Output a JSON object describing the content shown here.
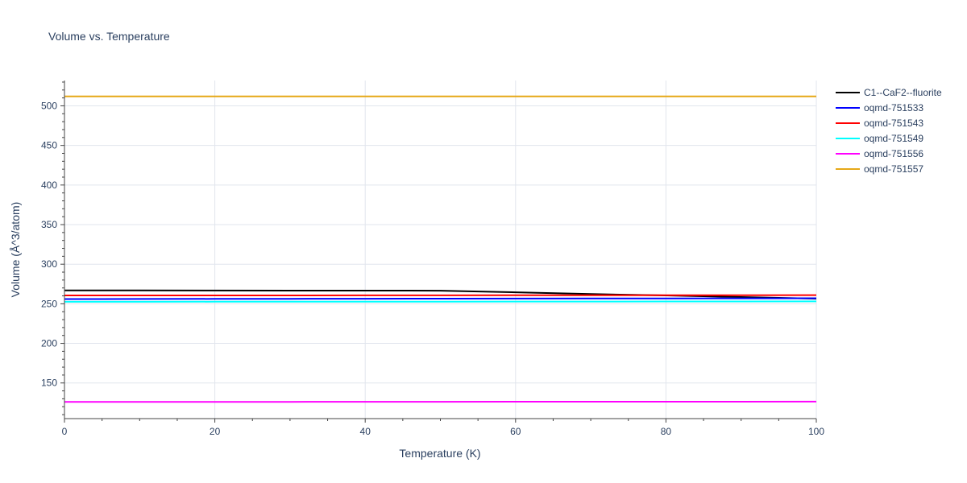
{
  "chart_data": {
    "type": "line",
    "title": "Volume vs. Temperature",
    "xlabel": "Temperature (K)",
    "ylabel": "Volume (Å^3/atom)",
    "xlim": [
      0,
      100
    ],
    "ylim": [
      105,
      532
    ],
    "xticks": [
      0,
      20,
      40,
      60,
      80,
      100
    ],
    "yticks": [
      150,
      200,
      250,
      300,
      350,
      400,
      450,
      500
    ],
    "grid": true,
    "legend_position": "top-right",
    "series": [
      {
        "name": "C1--CaF2--fluorite",
        "color": "#000000",
        "x": [
          0,
          10,
          20,
          30,
          40,
          50,
          60,
          70,
          80,
          90,
          100
        ],
        "y": [
          267.0,
          266.9,
          266.8,
          266.7,
          266.6,
          266.5,
          264.5,
          262.3,
          260.5,
          258.5,
          256.5
        ]
      },
      {
        "name": "oqmd-751533",
        "color": "#0000ff",
        "x": [
          0,
          10,
          20,
          30,
          40,
          50,
          60,
          70,
          80,
          90,
          100
        ],
        "y": [
          256.0,
          256.1,
          256.2,
          256.3,
          256.4,
          256.5,
          256.6,
          256.7,
          256.8,
          256.9,
          257.0
        ]
      },
      {
        "name": "oqmd-751543",
        "color": "#ff0000",
        "x": [
          0,
          10,
          20,
          30,
          40,
          50,
          60,
          70,
          80,
          90,
          100
        ],
        "y": [
          260.5,
          260.5,
          260.6,
          260.6,
          260.7,
          260.7,
          260.8,
          260.8,
          260.9,
          260.9,
          261.0
        ]
      },
      {
        "name": "oqmd-751549",
        "color": "#00ffff",
        "x": [
          0,
          10,
          20,
          30,
          40,
          50,
          60,
          70,
          80,
          90,
          100
        ],
        "y": [
          252.5,
          252.5,
          252.6,
          252.6,
          252.7,
          252.7,
          252.8,
          252.8,
          252.9,
          252.9,
          253.0
        ]
      },
      {
        "name": "oqmd-751556",
        "color": "#ff00ff",
        "x": [
          0,
          10,
          20,
          30,
          40,
          50,
          60,
          70,
          80,
          90,
          100
        ],
        "y": [
          126.0,
          126.0,
          126.1,
          126.1,
          126.2,
          126.2,
          126.3,
          126.3,
          126.4,
          126.4,
          126.5
        ]
      },
      {
        "name": "oqmd-751557",
        "color": "#e6a817",
        "x": [
          0,
          10,
          20,
          30,
          40,
          50,
          60,
          70,
          80,
          90,
          100
        ],
        "y": [
          512.0,
          512.0,
          512.0,
          512.0,
          512.0,
          512.0,
          512.0,
          512.0,
          512.0,
          512.0,
          512.0
        ]
      }
    ]
  }
}
